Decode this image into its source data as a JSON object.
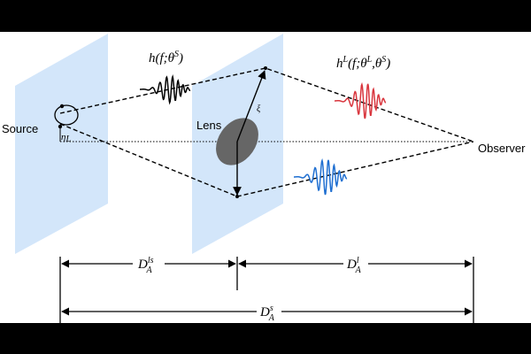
{
  "labels": {
    "source": "Source",
    "lens": "Lens",
    "observer": "Observer",
    "xi": "ξ",
    "eta": {
      "base": "η",
      "sub": "L"
    },
    "source_wave": {
      "p1": "h(f;θ",
      "s1": "S",
      "p2": ")"
    },
    "lensed_wave": {
      "p1": "h",
      "s1": "L",
      "p2": "(f;θ",
      "s2": "L",
      "p3": ",θ",
      "s3": "S",
      "p4": ")"
    },
    "d_ls": {
      "base": "D",
      "sub": "A",
      "sup": "ls"
    },
    "d_l": {
      "base": "D",
      "sub": "A",
      "sup": "l"
    },
    "d_s": {
      "base": "D",
      "sub": "A",
      "sup": "s"
    }
  }
}
